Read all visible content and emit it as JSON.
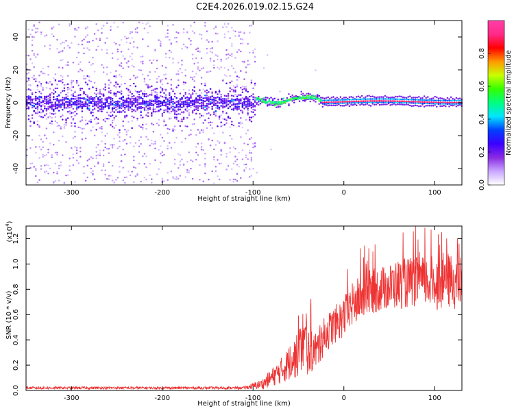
{
  "figure": {
    "title": "C2E4.2026.019.02.15.G24"
  },
  "chart_data": [
    {
      "type": "heatmap",
      "title": "C2E4.2026.019.02.15.G24",
      "xlabel": "Height of straight line (km)",
      "ylabel": "Frequency (Hz)",
      "xlim": [
        -350,
        130
      ],
      "ylim": [
        -50,
        50
      ],
      "xticks": [
        -300,
        -200,
        -100,
        0,
        100
      ],
      "yticks": [
        -40,
        -20,
        0,
        20,
        40
      ],
      "colorbar": {
        "label": "Normalized spectral amplitude",
        "range": [
          0.0,
          1.0
        ],
        "ticks": [
          "0.0",
          "0.2",
          "0.4",
          "0.6",
          "0.8"
        ],
        "colors": [
          "#ffffff",
          "#c9a6ff",
          "#8a2be2",
          "#3b00ff",
          "#0040ff",
          "#00e5ff",
          "#00ff80",
          "#33ff00",
          "#c8ff00",
          "#ff9900",
          "#ff0000",
          "#ff2a8a",
          "#ff3fa8"
        ]
      },
      "regions": [
        {
          "x_range": [
            -350,
            -100
          ],
          "description_level": "noise",
          "core_band_hz": [
            -10,
            10
          ],
          "spread_hz": [
            -50,
            48
          ]
        },
        {
          "x_range": [
            -100,
            -30
          ],
          "description_level": "transition",
          "core_band_hz": [
            -3,
            6
          ]
        },
        {
          "x_range": [
            -30,
            130
          ],
          "description_level": "signal",
          "core_band_hz": [
            -1,
            2
          ]
        }
      ]
    },
    {
      "type": "line",
      "xlabel": "Height of straight line (km)",
      "ylabel": "SNR (10 * v/v)",
      "y_multiplier": "(x10",
      "y_multiplier_exp": "4",
      "xlim": [
        -350,
        130
      ],
      "ylim": [
        0,
        1.3
      ],
      "xticks": [
        -300,
        -200,
        -100,
        0,
        100
      ],
      "yticks": [
        "0.0",
        "0.2",
        "0.4",
        "0.6",
        "0.8",
        "1.0",
        "1.2"
      ],
      "series": [
        {
          "name": "SNR",
          "color": "#ee3333",
          "x": [
            -350,
            -300,
            -200,
            -110,
            -90,
            -80,
            -70,
            -60,
            -50,
            -45,
            -40,
            -30,
            -20,
            -10,
            0,
            10,
            20,
            30,
            40,
            50,
            60,
            70,
            80,
            90,
            100,
            110,
            120,
            130
          ],
          "y": [
            0.02,
            0.02,
            0.02,
            0.02,
            0.05,
            0.1,
            0.15,
            0.22,
            0.28,
            0.4,
            0.3,
            0.32,
            0.45,
            0.52,
            0.58,
            0.68,
            0.74,
            0.78,
            0.8,
            0.82,
            0.84,
            0.85,
            0.86,
            0.86,
            0.85,
            0.87,
            0.86,
            0.85
          ],
          "noise": [
            0.01,
            0.01,
            0.01,
            0.01,
            0.04,
            0.07,
            0.1,
            0.14,
            0.18,
            0.25,
            0.18,
            0.15,
            0.15,
            0.15,
            0.16,
            0.18,
            0.18,
            0.18,
            0.18,
            0.18,
            0.2,
            0.2,
            0.2,
            0.2,
            0.22,
            0.22,
            0.22,
            0.22
          ]
        }
      ]
    }
  ]
}
